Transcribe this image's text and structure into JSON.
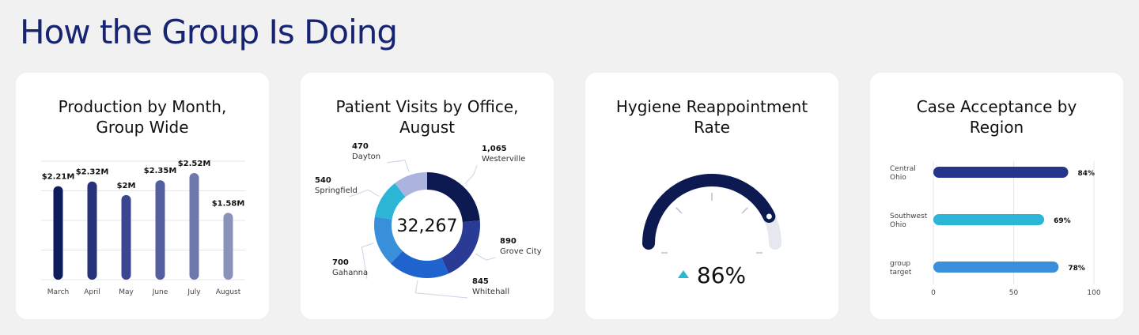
{
  "page": {
    "title": "How the Group Is Doing"
  },
  "colors": {
    "title": "#172470",
    "navy": "#0d1a52",
    "cyan": "#2bb6cf",
    "accent_up": "#2bb6cf"
  },
  "chart_data": [
    {
      "type": "bar",
      "title": "Production by Month,\nGroup Wide",
      "categories": [
        "March",
        "April",
        "May",
        "June",
        "July",
        "August"
      ],
      "values": [
        2.21,
        2.32,
        2.0,
        2.35,
        2.52,
        1.58
      ],
      "value_labels": [
        "$2.21M",
        "$2.32M",
        "$2M",
        "$2.35M",
        "$2.52M",
        "$1.58M"
      ],
      "colors": [
        "#0f1c5c",
        "#26327a",
        "#3a4690",
        "#545f9f",
        "#6e78ab",
        "#8a92ba"
      ],
      "ylim": [
        0,
        2.8
      ],
      "grid": true
    },
    {
      "type": "pie",
      "title": "Patient Visits by Office,\nAugust",
      "center_label": "32,267",
      "slices": [
        {
          "name": "Westerville",
          "value": 1065,
          "label": "1,065",
          "color": "#0d1a52"
        },
        {
          "name": "Grove City",
          "value": 890,
          "label": "890",
          "color": "#2a3b96"
        },
        {
          "name": "Whitehall",
          "value": 845,
          "label": "845",
          "color": "#1f63cf"
        },
        {
          "name": "Gahanna",
          "value": 700,
          "label": "700",
          "color": "#3a8fdb"
        },
        {
          "name": "Springfield",
          "value": 540,
          "label": "540",
          "color": "#2bb6d6"
        },
        {
          "name": "Dayton",
          "value": 470,
          "label": "470",
          "color": "#abb3de"
        }
      ]
    },
    {
      "type": "gauge",
      "title": "Hygiene Reappointment\nRate",
      "value": 86,
      "value_label": "86%",
      "range": [
        0,
        100
      ],
      "trend": "up"
    },
    {
      "type": "bar",
      "orientation": "horizontal",
      "title": "Case Acceptance by\nRegion",
      "categories": [
        "Central\nOhio",
        "Southwest\nOhio",
        "group\ntarget"
      ],
      "values": [
        84,
        69,
        78
      ],
      "value_labels": [
        "84%",
        "69%",
        "78%"
      ],
      "colors": [
        "#26358c",
        "#2bb6d6",
        "#3a8fdb"
      ],
      "xlim": [
        0,
        100
      ],
      "xticks": [
        "0",
        "50",
        "100"
      ],
      "grid": true
    }
  ]
}
